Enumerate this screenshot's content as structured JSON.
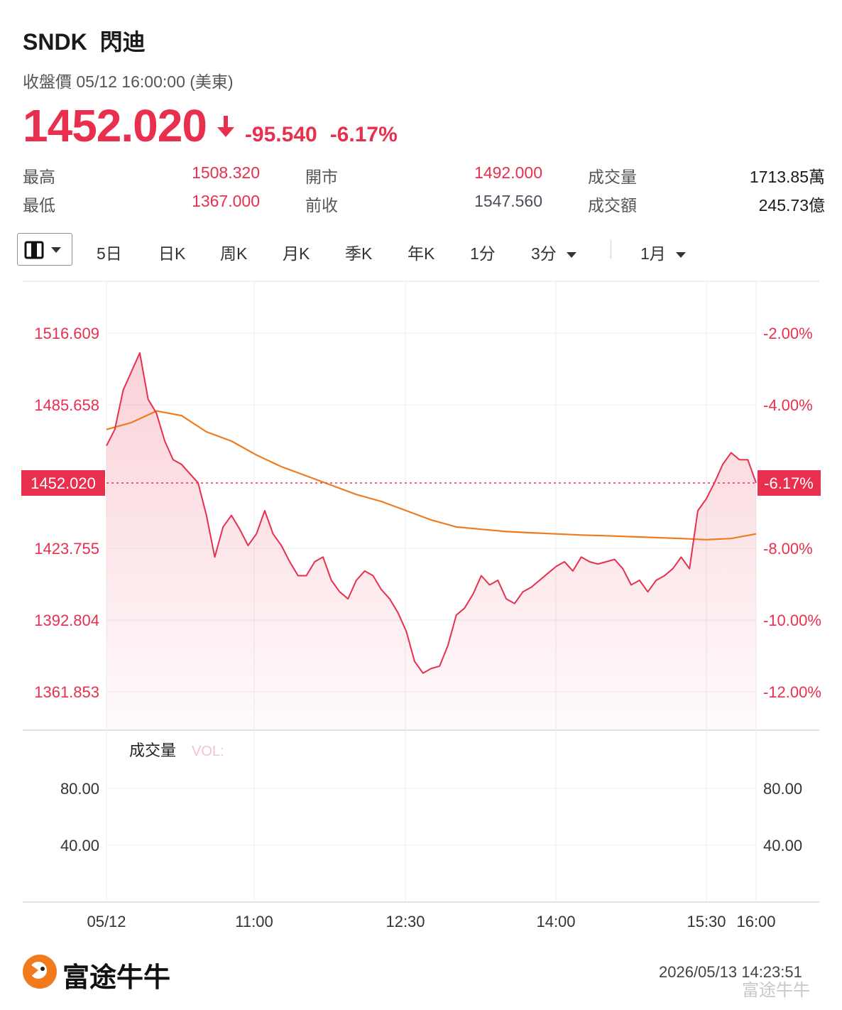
{
  "header": {
    "symbol": "SNDK",
    "name": "閃迪",
    "closing_label": "收盤價 05/12 16:00:00 (美東)",
    "price": "1452.020",
    "change": "-95.540",
    "change_pct": "-6.17%",
    "direction_icon": "arrow-down-icon"
  },
  "stats": {
    "high_label": "最高",
    "high": "1508.320",
    "low_label": "最低",
    "low": "1367.000",
    "open_label": "開市",
    "open": "1492.000",
    "prev_close_label": "前收",
    "prev_close": "1547.560",
    "volume_label": "成交量",
    "volume": "1713.85萬",
    "turnover_label": "成交額",
    "turnover": "245.73億"
  },
  "tabs": {
    "mode_icon": "candle-mode-icon",
    "items": [
      "5日",
      "日K",
      "周K",
      "月K",
      "季K",
      "年K",
      "1分"
    ],
    "interval": "3分",
    "range": "1月"
  },
  "volume_panel": {
    "title": "成交量",
    "vol_label": "VOL:"
  },
  "footer": {
    "logo_text": "富途牛牛",
    "timestamp": "2026/05/13 14:23:51",
    "watermark": "富途牛牛"
  },
  "colors": {
    "up_down_red": "#e8304e",
    "avg_line": "#f07a1c",
    "grid": "#ececec"
  },
  "chart_data": [
    {
      "type": "line",
      "title": "",
      "x_ticks": [
        "05/12",
        "11:00",
        "12:30",
        "14:00",
        "15:30",
        "16:00"
      ],
      "y_ticks_left": [
        "1516.609",
        "1485.658",
        "1452.020",
        "1423.755",
        "1392.804",
        "1361.853"
      ],
      "y_ticks_right": [
        "-2.00%",
        "-4.00%",
        "-6.17%",
        "-8.00%",
        "-10.00%",
        "-12.00%"
      ],
      "prev_close": 1547.56,
      "last_price": 1452.02,
      "ylim": [
        1345.4,
        1538.9
      ],
      "series": [
        {
          "role": "price",
          "x": [
            "09:30",
            "09:35",
            "09:40",
            "09:45",
            "09:50",
            "09:55",
            "10:00",
            "10:05",
            "10:10",
            "10:15",
            "10:20",
            "10:25",
            "10:30",
            "10:35",
            "10:40",
            "10:45",
            "10:50",
            "10:55",
            "11:00",
            "11:05",
            "11:10",
            "11:15",
            "11:20",
            "11:25",
            "11:30",
            "11:35",
            "11:40",
            "11:45",
            "11:50",
            "11:55",
            "12:00",
            "12:05",
            "12:10",
            "12:15",
            "12:20",
            "12:25",
            "12:30",
            "12:35",
            "12:40",
            "12:45",
            "12:50",
            "12:55",
            "13:00",
            "13:05",
            "13:10",
            "13:15",
            "13:20",
            "13:25",
            "13:30",
            "13:35",
            "13:40",
            "13:45",
            "13:50",
            "13:55",
            "14:00",
            "14:05",
            "14:10",
            "14:15",
            "14:20",
            "14:25",
            "14:30",
            "14:35",
            "14:40",
            "14:45",
            "14:50",
            "14:55",
            "15:00",
            "15:05",
            "15:10",
            "15:15",
            "15:20",
            "15:25",
            "15:30",
            "15:35",
            "15:40",
            "15:45",
            "15:50",
            "15:55",
            "16:00"
          ],
          "values": [
            1468,
            1475,
            1492,
            1500,
            1508,
            1488,
            1482,
            1470,
            1462,
            1460,
            1456,
            1452,
            1438,
            1420,
            1433,
            1438,
            1432,
            1425,
            1430,
            1440,
            1430,
            1425,
            1418,
            1412,
            1412,
            1418,
            1420,
            1410,
            1405,
            1402,
            1410,
            1414,
            1412,
            1406,
            1402,
            1396,
            1388,
            1375,
            1370,
            1372,
            1373,
            1382,
            1395,
            1398,
            1404,
            1412,
            1408,
            1410,
            1402,
            1400,
            1405,
            1407,
            1410,
            1413,
            1416,
            1418,
            1414,
            1420,
            1418,
            1417,
            1418,
            1419,
            1415,
            1408,
            1410,
            1405,
            1410,
            1412,
            1415,
            1420,
            1415,
            1440,
            1445,
            1452,
            1460,
            1465,
            1462,
            1462,
            1452
          ]
        },
        {
          "role": "average",
          "x": [
            "09:30",
            "09:45",
            "10:00",
            "10:15",
            "10:30",
            "10:45",
            "11:00",
            "11:15",
            "11:30",
            "11:45",
            "12:00",
            "12:15",
            "12:30",
            "12:45",
            "13:00",
            "13:15",
            "13:30",
            "13:45",
            "14:00",
            "14:15",
            "14:30",
            "14:45",
            "15:00",
            "15:15",
            "15:30",
            "15:45",
            "16:00"
          ],
          "values": [
            1475,
            1478,
            1483,
            1481,
            1474,
            1470,
            1464,
            1459,
            1455,
            1451,
            1447,
            1444,
            1440,
            1436,
            1433,
            1432,
            1431,
            1430.5,
            1430,
            1429.5,
            1429.2,
            1428.8,
            1428.4,
            1428,
            1427.5,
            1428,
            1430
          ]
        }
      ]
    },
    {
      "type": "bar",
      "title": "成交量",
      "y_ticks": [
        "80.00",
        "40.00"
      ],
      "ylim": [
        0,
        120
      ],
      "values": []
    }
  ]
}
